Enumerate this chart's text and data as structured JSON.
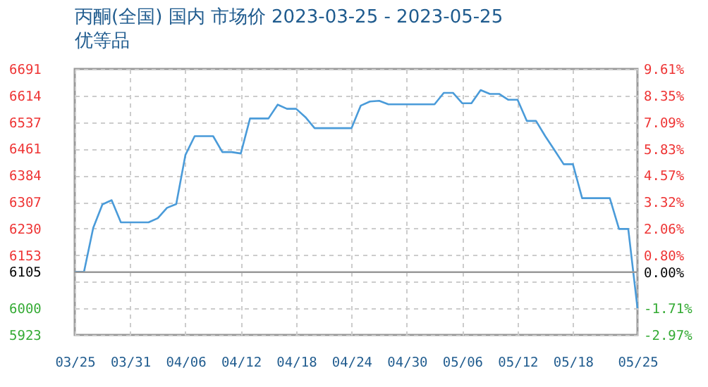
{
  "chart_data": {
    "type": "line",
    "title": "丙酮(全国) 国内 市场价 2023-03-25 - 2023-05-25",
    "subtitle": "优等品",
    "x": [
      "2023-03-25",
      "2023-03-26",
      "2023-03-27",
      "2023-03-28",
      "2023-03-29",
      "2023-03-30",
      "2023-03-31",
      "2023-04-01",
      "2023-04-02",
      "2023-04-03",
      "2023-04-04",
      "2023-04-05",
      "2023-04-06",
      "2023-04-07",
      "2023-04-08",
      "2023-04-09",
      "2023-04-10",
      "2023-04-11",
      "2023-04-12",
      "2023-04-13",
      "2023-04-14",
      "2023-04-15",
      "2023-04-16",
      "2023-04-17",
      "2023-04-18",
      "2023-04-19",
      "2023-04-20",
      "2023-04-21",
      "2023-04-22",
      "2023-04-23",
      "2023-04-24",
      "2023-04-25",
      "2023-04-26",
      "2023-04-27",
      "2023-04-28",
      "2023-04-29",
      "2023-04-30",
      "2023-05-01",
      "2023-05-02",
      "2023-05-03",
      "2023-05-04",
      "2023-05-05",
      "2023-05-06",
      "2023-05-07",
      "2023-05-08",
      "2023-05-09",
      "2023-05-10",
      "2023-05-11",
      "2023-05-12",
      "2023-05-13",
      "2023-05-14",
      "2023-05-15",
      "2023-05-16",
      "2023-05-17",
      "2023-05-18",
      "2023-05-19",
      "2023-05-20",
      "2023-05-21",
      "2023-05-22",
      "2023-05-23",
      "2023-05-24",
      "2023-05-25"
    ],
    "series": [
      {
        "color": "#4a9bd9",
        "values": [
          6105,
          6105,
          6232,
          6300,
          6312,
          6248,
          6248,
          6248,
          6248,
          6260,
          6290,
          6301,
          6443,
          6497,
          6497,
          6497,
          6451,
          6451,
          6447,
          6548,
          6548,
          6548,
          6588,
          6576,
          6576,
          6552,
          6520,
          6520,
          6520,
          6520,
          6520,
          6585,
          6597,
          6599,
          6589,
          6589,
          6589,
          6589,
          6589,
          6589,
          6622,
          6622,
          6592,
          6592,
          6630,
          6619,
          6619,
          6602,
          6602,
          6541,
          6541,
          6497,
          6457,
          6416,
          6416,
          6318,
          6318,
          6318,
          6318,
          6229,
          6229,
          6000
        ]
      }
    ],
    "xlim": [
      "2023-03-25",
      "2023-05-25"
    ],
    "xticks": [
      {
        "value": "2023-03-25",
        "label": "03/25"
      },
      {
        "value": "2023-03-31",
        "label": "03/31"
      },
      {
        "value": "2023-04-06",
        "label": "04/06"
      },
      {
        "value": "2023-04-12",
        "label": "04/12"
      },
      {
        "value": "2023-04-18",
        "label": "04/18"
      },
      {
        "value": "2023-04-24",
        "label": "04/24"
      },
      {
        "value": "2023-04-30",
        "label": "04/30"
      },
      {
        "value": "2023-05-06",
        "label": "05/06"
      },
      {
        "value": "2023-05-12",
        "label": "05/12"
      },
      {
        "value": "2023-05-18",
        "label": "05/18"
      },
      {
        "value": "2023-05-25",
        "label": "05/25"
      }
    ],
    "ylim": [
      5923,
      6691
    ],
    "yticks": [
      5923,
      6000,
      {
        "value": 6076,
        "label": null
      },
      6105,
      6153,
      6230,
      6307,
      6384,
      6461,
      6537,
      6614,
      6691
    ],
    "y2lim": [
      -2.97,
      9.61
    ],
    "y2ticks": [
      {
        "value": -2.97,
        "label": "-2.97%"
      },
      {
        "value": -1.71,
        "label": "-1.71%"
      },
      {
        "value": 0,
        "label": "0.00%"
      },
      {
        "value": 0.8,
        "label": "0.80%"
      },
      {
        "value": 2.06,
        "label": "2.06%"
      },
      {
        "value": 3.32,
        "label": "3.32%"
      },
      {
        "value": 4.57,
        "label": "4.57%"
      },
      {
        "value": 5.83,
        "label": "5.83%"
      },
      {
        "value": 7.09,
        "label": "7.09%"
      },
      {
        "value": 8.35,
        "label": "8.35%"
      },
      {
        "value": 9.61,
        "label": "9.61%"
      }
    ],
    "ref_lines": [
      {
        "axis": "y2",
        "value": 0,
        "color": "#999999"
      }
    ],
    "grid": true
  }
}
